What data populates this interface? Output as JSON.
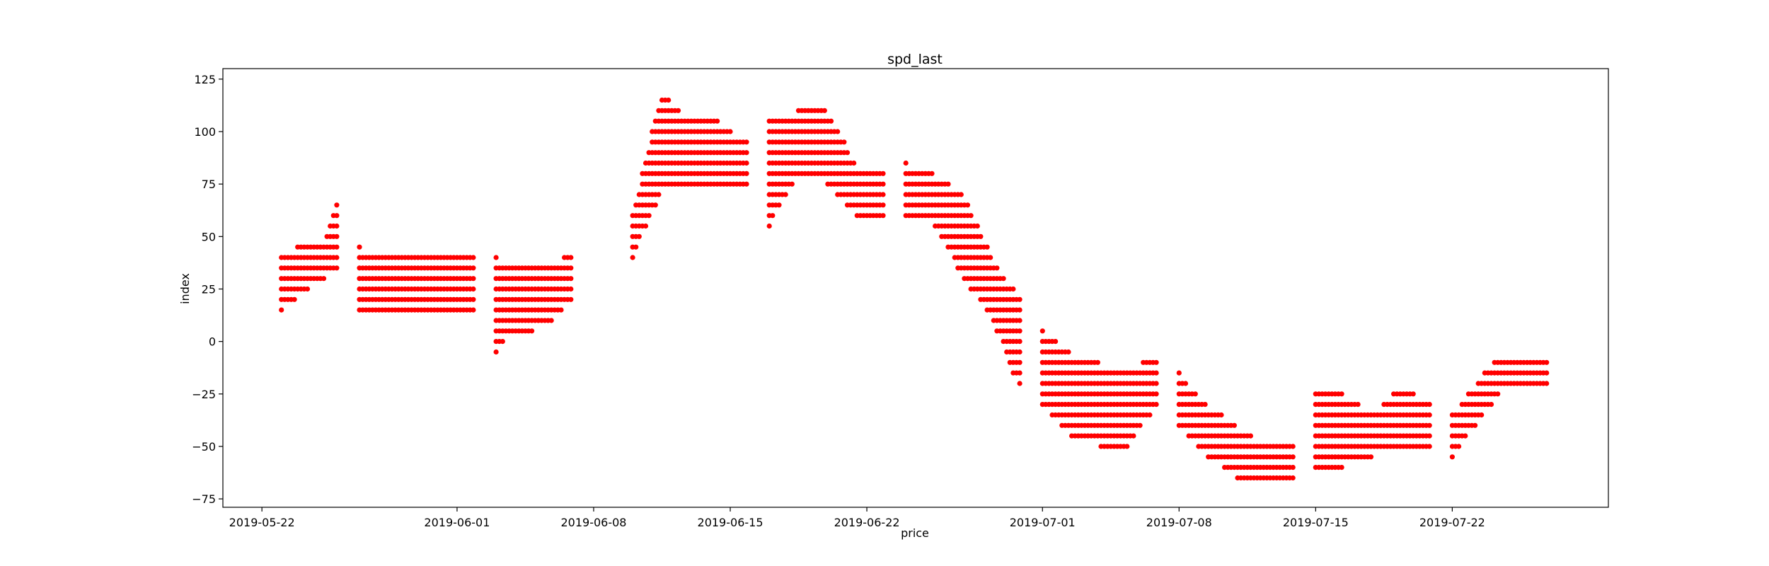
{
  "chart_data": {
    "type": "scatter",
    "title": "spd_last",
    "xlabel": "price",
    "ylabel": "index",
    "xlim": [
      "2019-05-20",
      "2019-07-30"
    ],
    "ylim": [
      -79,
      130
    ],
    "grid": false,
    "marker_color": "#ff0000",
    "x_ticks": [
      "2019-05-22",
      "2019-06-01",
      "2019-06-08",
      "2019-06-15",
      "2019-06-22",
      "2019-07-01",
      "2019-07-08",
      "2019-07-15",
      "2019-07-22"
    ],
    "y_ticks": [
      125,
      100,
      75,
      50,
      25,
      0,
      -25,
      -50,
      -75
    ],
    "series": [
      {
        "clusters": [
          {
            "start": "2019-05-23",
            "end": "2019-05-25",
            "lo": [
              15,
              20,
              25,
              30,
              35
            ],
            "hi": [
              40,
              45,
              45,
              50,
              70
            ]
          },
          {
            "start": "2019-05-27",
            "end": "2019-06-01",
            "lo": [
              15,
              15,
              15,
              15,
              15
            ],
            "hi": [
              45,
              40,
              40,
              45,
              40
            ]
          },
          {
            "start": "2019-06-03",
            "end": "2019-06-06",
            "lo": [
              -5,
              5,
              5,
              10,
              20
            ],
            "hi": [
              40,
              35,
              35,
              35,
              45
            ]
          },
          {
            "start": "2019-06-10",
            "end": "2019-06-15",
            "lo": [
              40,
              70,
              75,
              75,
              70
            ],
            "hi": [
              60,
              120,
              105,
              105,
              95
            ]
          },
          {
            "start": "2019-06-17",
            "end": "2019-06-22",
            "lo": [
              55,
              80,
              75,
              60,
              55
            ],
            "hi": [
              105,
              110,
              110,
              85,
              80
            ]
          },
          {
            "start": "2019-06-24",
            "end": "2019-06-29",
            "lo": [
              60,
              55,
              30,
              10,
              -25
            ],
            "hi": [
              85,
              80,
              70,
              40,
              20
            ]
          },
          {
            "start": "2019-07-01",
            "end": "2019-07-06",
            "lo": [
              -30,
              -45,
              -50,
              -50,
              -30
            ],
            "hi": [
              5,
              -5,
              -10,
              -15,
              -5
            ]
          },
          {
            "start": "2019-07-08",
            "end": "2019-07-13",
            "lo": [
              -40,
              -55,
              -65,
              -70,
              -65
            ],
            "hi": [
              -15,
              -30,
              -40,
              -50,
              -45
            ]
          },
          {
            "start": "2019-07-15",
            "end": "2019-07-20",
            "lo": [
              -60,
              -60,
              -55,
              -50,
              -50
            ],
            "hi": [
              -25,
              -25,
              -35,
              -20,
              -30
            ]
          },
          {
            "start": "2019-07-22",
            "end": "2019-07-26",
            "lo": [
              -55,
              -40,
              -25,
              -20,
              -20
            ],
            "hi": [
              -35,
              -20,
              -5,
              -10,
              -5
            ]
          }
        ]
      }
    ]
  }
}
